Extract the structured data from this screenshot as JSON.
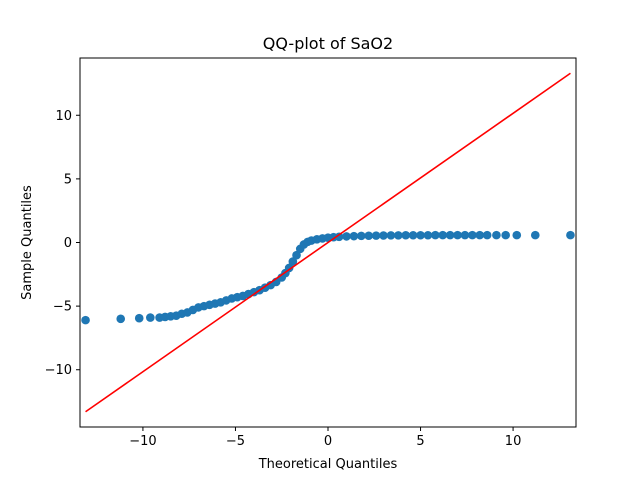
{
  "chart_data": {
    "type": "scatter",
    "title": "QQ-plot of SaO2",
    "xlabel": "Theoretical Quantiles",
    "ylabel": "Sample Quantiles",
    "xlim": [
      -13.4,
      13.4
    ],
    "ylim": [
      -14.5,
      14.5
    ],
    "xticks": [
      {
        "value": -10,
        "label": "−10"
      },
      {
        "value": -5,
        "label": "−5"
      },
      {
        "value": 0,
        "label": "0"
      },
      {
        "value": 5,
        "label": "5"
      },
      {
        "value": 10,
        "label": "10"
      }
    ],
    "yticks": [
      {
        "value": -10,
        "label": "−10"
      },
      {
        "value": -5,
        "label": "−5"
      },
      {
        "value": 0,
        "label": "0"
      },
      {
        "value": 5,
        "label": "5"
      },
      {
        "value": 10,
        "label": "10"
      }
    ],
    "grid": false,
    "colors": {
      "points": "#1f77b4",
      "reference_line": "#ff0000"
    },
    "reference_line": {
      "x": [
        -13.1,
        13.1
      ],
      "y": [
        -13.3,
        13.3
      ]
    },
    "series": [
      {
        "points": [
          [
            -13.1,
            -6.1
          ],
          [
            -11.2,
            -6.0
          ],
          [
            -10.2,
            -5.95
          ],
          [
            -9.6,
            -5.9
          ],
          [
            -9.1,
            -5.9
          ],
          [
            -8.8,
            -5.85
          ],
          [
            -8.5,
            -5.8
          ],
          [
            -8.2,
            -5.75
          ],
          [
            -7.9,
            -5.6
          ],
          [
            -7.6,
            -5.5
          ],
          [
            -7.3,
            -5.3
          ],
          [
            -7.0,
            -5.1
          ],
          [
            -6.7,
            -5.0
          ],
          [
            -6.4,
            -4.9
          ],
          [
            -6.1,
            -4.8
          ],
          [
            -5.8,
            -4.7
          ],
          [
            -5.5,
            -4.55
          ],
          [
            -5.2,
            -4.4
          ],
          [
            -4.9,
            -4.3
          ],
          [
            -4.6,
            -4.2
          ],
          [
            -4.3,
            -4.05
          ],
          [
            -4.0,
            -3.9
          ],
          [
            -3.7,
            -3.75
          ],
          [
            -3.4,
            -3.55
          ],
          [
            -3.1,
            -3.35
          ],
          [
            -2.8,
            -3.1
          ],
          [
            -2.5,
            -2.75
          ],
          [
            -2.3,
            -2.4
          ],
          [
            -2.1,
            -2.0
          ],
          [
            -1.9,
            -1.5
          ],
          [
            -1.7,
            -1.0
          ],
          [
            -1.5,
            -0.5
          ],
          [
            -1.3,
            -0.15
          ],
          [
            -1.1,
            0.05
          ],
          [
            -0.9,
            0.15
          ],
          [
            -0.6,
            0.25
          ],
          [
            -0.3,
            0.32
          ],
          [
            0.0,
            0.38
          ],
          [
            0.3,
            0.42
          ],
          [
            0.6,
            0.45
          ],
          [
            1.0,
            0.48
          ],
          [
            1.4,
            0.5
          ],
          [
            1.8,
            0.52
          ],
          [
            2.2,
            0.53
          ],
          [
            2.6,
            0.54
          ],
          [
            3.0,
            0.55
          ],
          [
            3.4,
            0.56
          ],
          [
            3.8,
            0.56
          ],
          [
            4.2,
            0.57
          ],
          [
            4.6,
            0.57
          ],
          [
            5.0,
            0.57
          ],
          [
            5.4,
            0.57
          ],
          [
            5.8,
            0.58
          ],
          [
            6.2,
            0.58
          ],
          [
            6.6,
            0.58
          ],
          [
            7.0,
            0.58
          ],
          [
            7.4,
            0.58
          ],
          [
            7.8,
            0.58
          ],
          [
            8.2,
            0.58
          ],
          [
            8.6,
            0.58
          ],
          [
            9.1,
            0.58
          ],
          [
            9.6,
            0.58
          ],
          [
            10.2,
            0.58
          ],
          [
            11.2,
            0.58
          ],
          [
            13.1,
            0.58
          ]
        ]
      }
    ]
  }
}
